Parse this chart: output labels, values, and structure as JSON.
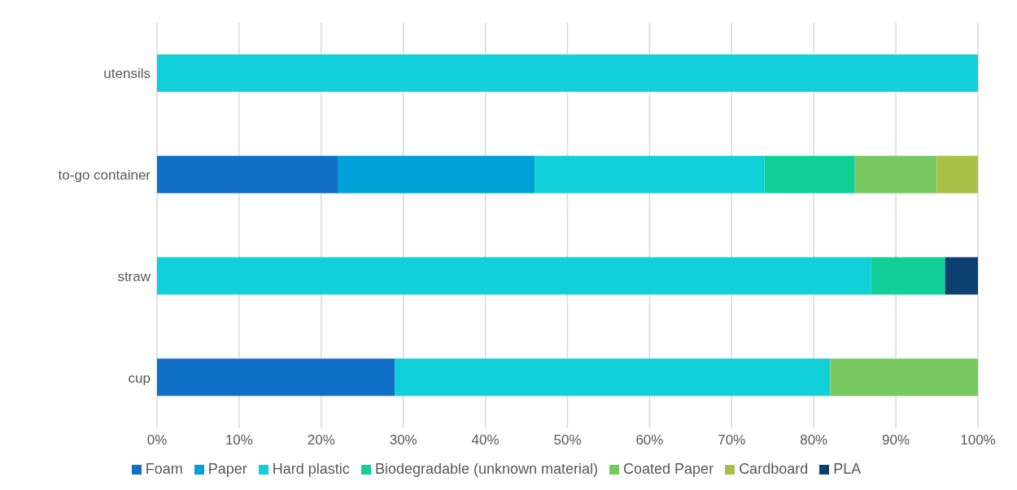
{
  "chart_data": {
    "type": "bar",
    "orientation": "horizontal",
    "stacked": true,
    "categories": [
      "utensils",
      "to-go container",
      "straw",
      "cup"
    ],
    "series": [
      {
        "name": "Foam",
        "color": "#1070c8",
        "values": [
          null,
          22,
          null,
          29
        ]
      },
      {
        "name": "Paper",
        "color": "#00a0d8",
        "values": [
          null,
          24,
          null,
          null
        ]
      },
      {
        "name": "Hard plastic",
        "color": "#10d0d8",
        "values": [
          100,
          28,
          87,
          53
        ]
      },
      {
        "name": "Biodegradable (unknown material)",
        "color": "#10d098",
        "values": [
          null,
          11,
          9,
          null
        ]
      },
      {
        "name": "Coated Paper",
        "color": "#78c860",
        "values": [
          null,
          10,
          null,
          18
        ]
      },
      {
        "name": "Cardboard",
        "color": "#a8c048",
        "values": [
          null,
          5,
          null,
          null
        ]
      },
      {
        "name": "PLA",
        "color": "#0c4070",
        "values": [
          null,
          null,
          4,
          null
        ]
      }
    ],
    "xlim": [
      0,
      100
    ],
    "xticks": [
      {
        "value": 0,
        "label": "0%"
      },
      {
        "value": 10,
        "label": "10%"
      },
      {
        "value": 20,
        "label": "20%"
      },
      {
        "value": 30,
        "label": "30%"
      },
      {
        "value": 40,
        "label": "40%"
      },
      {
        "value": 50,
        "label": "50%"
      },
      {
        "value": 60,
        "label": "60%"
      },
      {
        "value": 70,
        "label": "70%"
      },
      {
        "value": 80,
        "label": "80%"
      },
      {
        "value": 90,
        "label": "90%"
      },
      {
        "value": 100,
        "label": "100%"
      }
    ],
    "grid": "x",
    "legend": "bottom"
  }
}
